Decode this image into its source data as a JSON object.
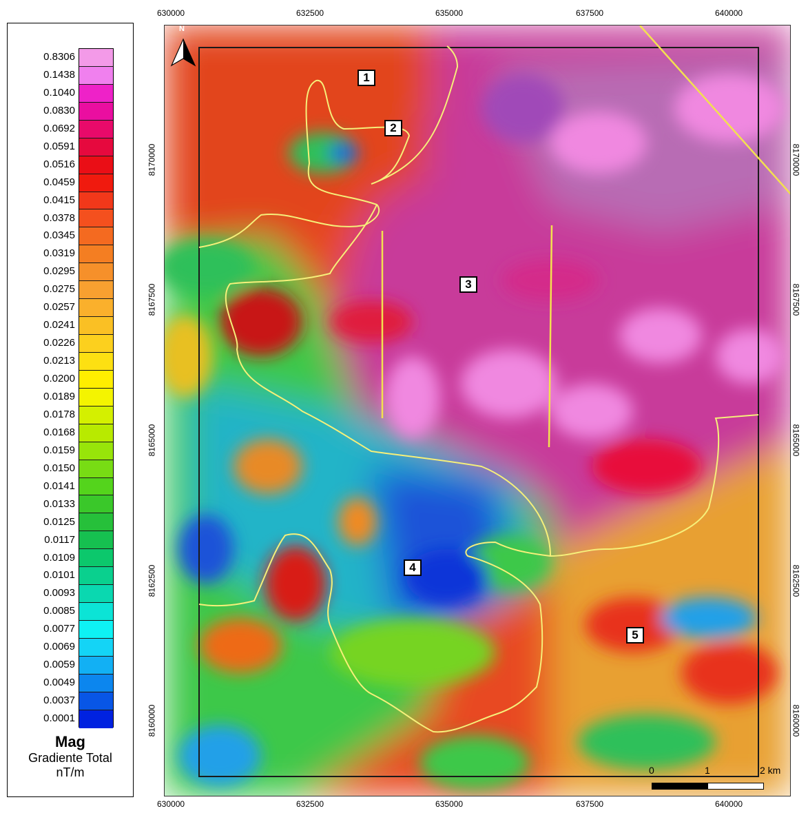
{
  "legend": {
    "values": [
      "0.8306",
      "0.1438",
      "0.1040",
      "0.0830",
      "0.0692",
      "0.0591",
      "0.0516",
      "0.0459",
      "0.0415",
      "0.0378",
      "0.0345",
      "0.0319",
      "0.0295",
      "0.0275",
      "0.0257",
      "0.0241",
      "0.0226",
      "0.0213",
      "0.0200",
      "0.0189",
      "0.0178",
      "0.0168",
      "0.0159",
      "0.0150",
      "0.0141",
      "0.0133",
      "0.0125",
      "0.0117",
      "0.0109",
      "0.0101",
      "0.0093",
      "0.0085",
      "0.0077",
      "0.0069",
      "0.0059",
      "0.0049",
      "0.0037",
      "0.0001"
    ],
    "colors": [
      "#f39ae8",
      "#f080ee",
      "#ee22c8",
      "#ea0ea0",
      "#e80a6a",
      "#e6093e",
      "#ea0e16",
      "#f01a0e",
      "#f2381a",
      "#f4501e",
      "#f46a20",
      "#f47e22",
      "#f6902a",
      "#f8a030",
      "#fab02c",
      "#fac024",
      "#fcd01e",
      "#fde012",
      "#ffee00",
      "#f4f400",
      "#d4f000",
      "#b8ea00",
      "#98e40a",
      "#78dc14",
      "#54d41c",
      "#3ac82a",
      "#26c03a",
      "#16c050",
      "#0cc86c",
      "#0ad08e",
      "#0ad8b0",
      "#0ce4d6",
      "#0ef2f4",
      "#14d4f6",
      "#12b0f4",
      "#0c86ee",
      "#0856e6",
      "#0022e0"
    ],
    "title": "Mag",
    "subtitle": "Gradiente Total",
    "unit": "nT/m"
  },
  "map": {
    "x_ticks": [
      "630000",
      "632500",
      "635000",
      "637500",
      "640000"
    ],
    "y_ticks": [
      "8170000",
      "8167500",
      "8165000",
      "8162500",
      "8160000"
    ],
    "north_label": "N",
    "zones": [
      "1",
      "2",
      "3",
      "4",
      "5"
    ],
    "scale": {
      "labels": [
        "0",
        "1",
        "2 km"
      ]
    },
    "colors": {
      "boundary": "#f6f07a",
      "frame": "#1a1a1a",
      "lineament": "#f3e14f"
    }
  }
}
